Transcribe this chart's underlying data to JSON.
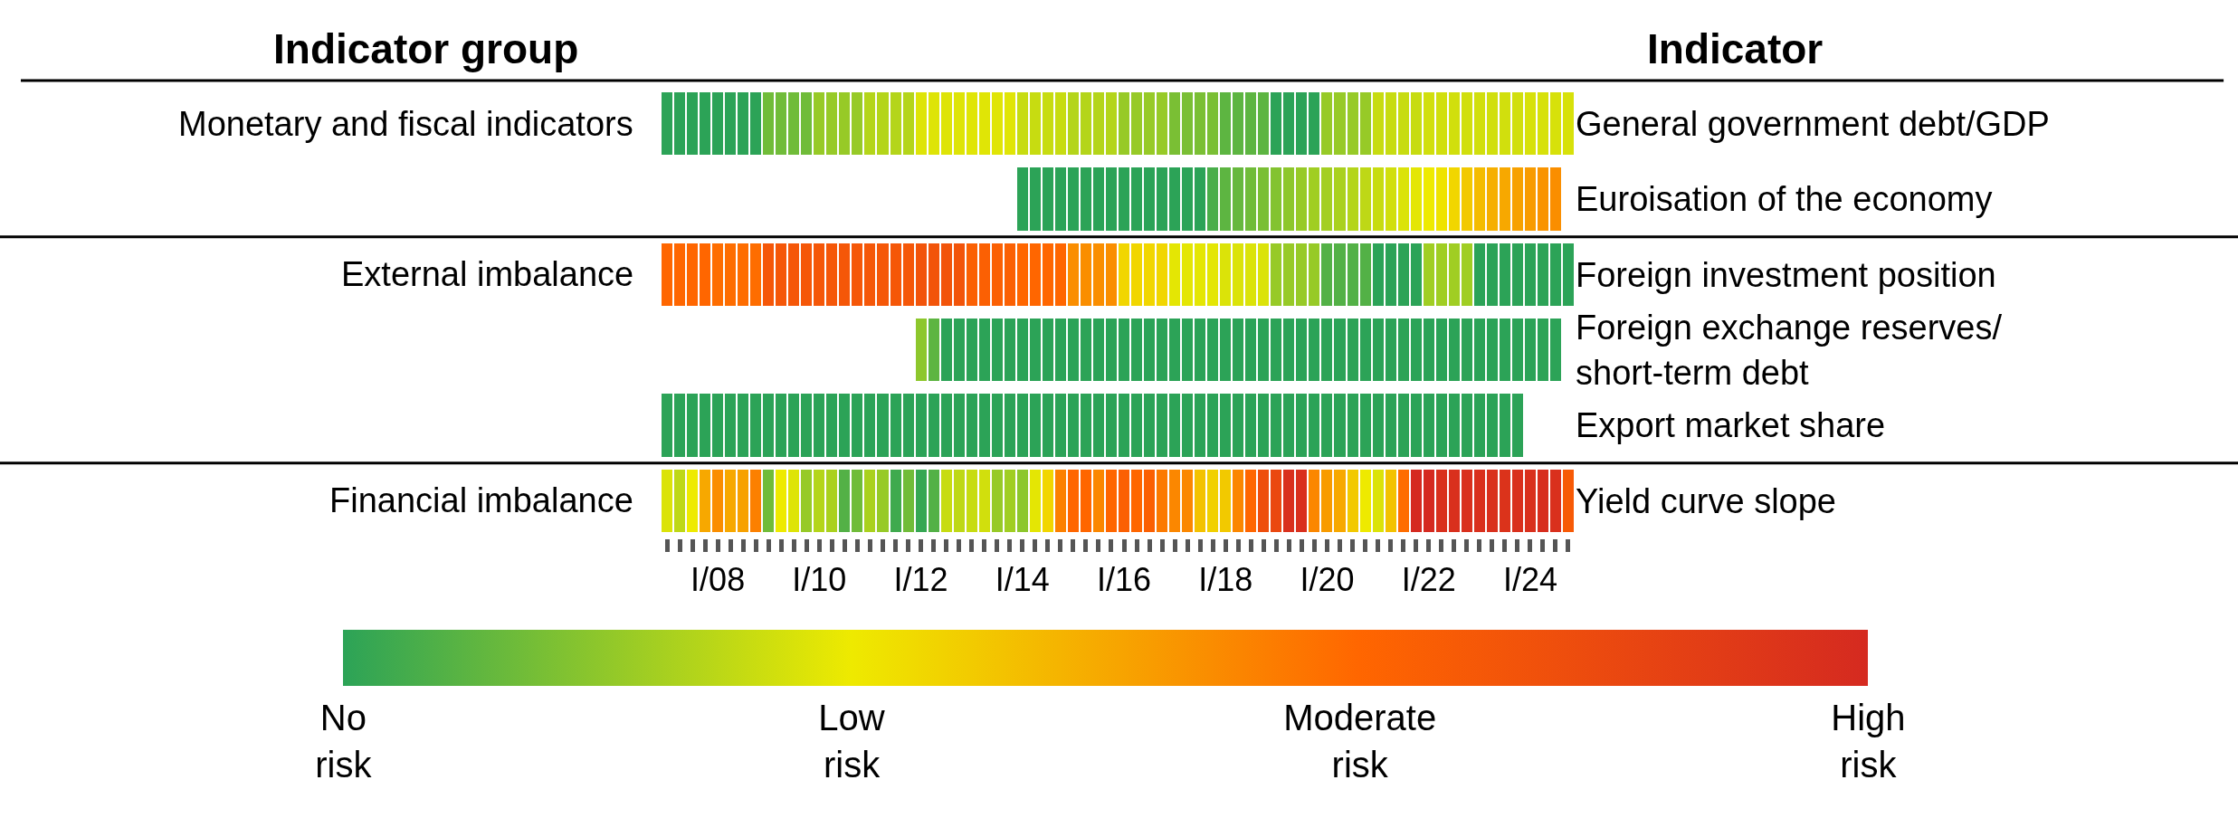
{
  "chart_data": {
    "type": "heatmap",
    "ylabel": "Indicator",
    "y2label": "Indicator group",
    "categories": [
      null,
      null,
      null,
      null,
      "I/08",
      null,
      null,
      null,
      null,
      null,
      null,
      null,
      "I/10",
      null,
      null,
      null,
      null,
      null,
      null,
      null,
      "I/12",
      null,
      null,
      null,
      null,
      null,
      null,
      null,
      "I/14",
      null,
      null,
      null,
      null,
      null,
      null,
      null,
      "I/16",
      null,
      null,
      null,
      null,
      null,
      null,
      null,
      "I/18",
      null,
      null,
      null,
      null,
      null,
      null,
      null,
      "I/20",
      null,
      null,
      null,
      null,
      null,
      null,
      null,
      "I/22",
      null,
      null,
      null,
      null,
      null,
      null,
      null,
      "I/24",
      null,
      null,
      null
    ],
    "y_categories": [
      "General government debt/GDP",
      "Euroisation of the economy",
      "Foreign investment position",
      "Foreign exchange reserves/\nshort-term debt",
      "Export market share",
      "Yield curve slope"
    ],
    "y2_categories": [
      "Monetary and fiscal indicators",
      null,
      "External imbalance",
      null,
      null,
      "Financial imbalance"
    ],
    "cells": [
      [
        0,
        0,
        0,
        0,
        0,
        0,
        0,
        0,
        0.35,
        0.35,
        0.35,
        0.35,
        0.55,
        0.55,
        0.55,
        0.55,
        0.7,
        0.7,
        0.7,
        0.7,
        0.92,
        0.92,
        0.92,
        0.92,
        0.93,
        0.93,
        0.93,
        0.93,
        0.8,
        0.8,
        0.8,
        0.8,
        0.7,
        0.7,
        0.7,
        0.7,
        0.55,
        0.55,
        0.55,
        0.55,
        0.4,
        0.4,
        0.4,
        0.4,
        0.25,
        0.25,
        0.25,
        0.25,
        0,
        0,
        0,
        0,
        0.55,
        0.55,
        0.55,
        0.55,
        0.8,
        0.8,
        0.8,
        0.8,
        0.85,
        0.85,
        0.85,
        0.85,
        0.85,
        0.85,
        0.85,
        0.85,
        0.88,
        0.88,
        0.88,
        0.88
      ],
      [
        null,
        null,
        null,
        null,
        null,
        null,
        null,
        null,
        null,
        null,
        null,
        null,
        null,
        null,
        null,
        null,
        null,
        null,
        null,
        null,
        null,
        null,
        null,
        null,
        null,
        null,
        null,
        null,
        0,
        0,
        0,
        0,
        0,
        0,
        0,
        0,
        0,
        0,
        0,
        0,
        0,
        0,
        0,
        0.15,
        0.25,
        0.3,
        0.35,
        0.4,
        0.45,
        0.5,
        0.55,
        0.6,
        0.62,
        0.65,
        0.7,
        0.75,
        0.8,
        0.85,
        0.9,
        0.95,
        1.0,
        1.05,
        1.15,
        1.25,
        1.35,
        1.45,
        1.5,
        1.55,
        1.6,
        1.65,
        1.7,
        null
      ],
      [
        2.0,
        2.0,
        2.0,
        2.0,
        1.95,
        1.95,
        1.95,
        1.95,
        2.25,
        2.25,
        2.25,
        2.25,
        2.25,
        2.25,
        2.25,
        2.25,
        2.25,
        2.25,
        2.25,
        2.25,
        2.3,
        2.3,
        2.3,
        2.3,
        2.1,
        2.1,
        2.1,
        2.1,
        2.0,
        2.0,
        2.0,
        2.0,
        1.7,
        1.7,
        1.7,
        1.7,
        1.15,
        1.15,
        1.15,
        1.15,
        0.95,
        0.95,
        0.95,
        0.95,
        0.9,
        0.9,
        0.9,
        0.9,
        0.55,
        0.55,
        0.55,
        0.55,
        0.2,
        0.2,
        0.2,
        0.2,
        0,
        0,
        0,
        0,
        0.6,
        0.6,
        0.6,
        0.6,
        0,
        0,
        0,
        0,
        0,
        0,
        0,
        0
      ],
      [
        null,
        null,
        null,
        null,
        null,
        null,
        null,
        null,
        null,
        null,
        null,
        null,
        null,
        null,
        null,
        null,
        null,
        null,
        null,
        null,
        0.5,
        0.25,
        0,
        0,
        0,
        0,
        0,
        0,
        0,
        0,
        0,
        0,
        0,
        0,
        0,
        0,
        0,
        0,
        0,
        0,
        0,
        0,
        0,
        0,
        0,
        0,
        0,
        0,
        0,
        0,
        0,
        0,
        0,
        0,
        0,
        0,
        0,
        0,
        0,
        0,
        0,
        0,
        0,
        0,
        0,
        0,
        0,
        0,
        0,
        0,
        0,
        null
      ],
      [
        0,
        0,
        0,
        0,
        0,
        0,
        0,
        0,
        0,
        0,
        0,
        0,
        0,
        0,
        0,
        0,
        0,
        0,
        0,
        0,
        0,
        0,
        0,
        0,
        0,
        0,
        0,
        0,
        0,
        0,
        0,
        0,
        0,
        0,
        0,
        0,
        0,
        0,
        0,
        0,
        0,
        0,
        0,
        0,
        0,
        0,
        0,
        0,
        0,
        0,
        0,
        0,
        0,
        0,
        0,
        0,
        0,
        0,
        0,
        0,
        0,
        0,
        0,
        0,
        0,
        0,
        0,
        0,
        null,
        null,
        null,
        null
      ],
      [
        0.9,
        0.75,
        1.0,
        1.5,
        1.7,
        1.5,
        1.55,
        1.8,
        0.35,
        1.0,
        0.92,
        0.55,
        0.7,
        0.65,
        0.2,
        0.35,
        0.65,
        0.55,
        0.1,
        0.35,
        0.05,
        0.2,
        0.8,
        0.75,
        0.8,
        0.85,
        0.55,
        0.6,
        0.5,
        0.95,
        1.15,
        1.8,
        2.0,
        2.0,
        1.75,
        2.0,
        2.1,
        2.0,
        2.1,
        1.85,
        1.75,
        1.75,
        1.3,
        1.2,
        1.25,
        1.75,
        2.0,
        2.4,
        2.5,
        2.9,
        2.9,
        1.75,
        1.6,
        1.5,
        1.25,
        1.0,
        0.9,
        1.3,
        1.95,
        3.0,
        3.0,
        2.9,
        2.9,
        2.9,
        2.9,
        2.9,
        2.85,
        2.9,
        2.9,
        2.95,
        2.9,
        2.2
      ]
    ],
    "colors": [
      "#2ca357",
      "#eeea00",
      "#ff6600",
      "#d52a20"
    ],
    "clim": [
      0,
      3
    ],
    "cticks": [
      {
        "value": 0,
        "label": "No\nrisk"
      },
      {
        "value": 1,
        "label": "Low\nrisk"
      },
      {
        "value": 2,
        "label": "Moderate\nrisk"
      },
      {
        "value": 3,
        "label": "High\nrisk"
      }
    ]
  }
}
